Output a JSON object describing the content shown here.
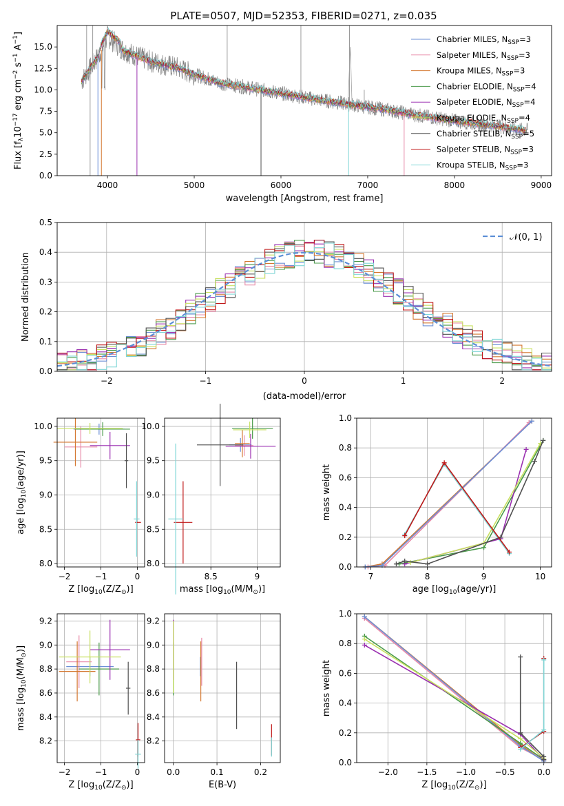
{
  "figure_title": "PLATE=0507, MJD=52353, FIBERID=0271, z=0.035",
  "series": [
    {
      "name": "Chabrier MILES",
      "nssp": "3",
      "color": "#6b8fd6"
    },
    {
      "name": "Salpeter MILES",
      "nssp": "3",
      "color": "#e88aa8"
    },
    {
      "name": "Kroupa MILES",
      "nssp": "3",
      "color": "#d4772f"
    },
    {
      "name": "Chabrier ELODIE",
      "nssp": "4",
      "color": "#4a9a4a"
    },
    {
      "name": "Salpeter ELODIE",
      "nssp": "4",
      "color": "#9a2fb0"
    },
    {
      "name": "Kroupa ELODIE",
      "nssp": "4",
      "color": "#c8e060"
    },
    {
      "name": "Chabrier STELIB",
      "nssp": "5",
      "color": "#505050"
    },
    {
      "name": "Salpeter STELIB",
      "nssp": "3",
      "color": "#c01818"
    },
    {
      "name": "Kroupa STELIB",
      "nssp": "3",
      "color": "#7fd6d6"
    }
  ],
  "chart_data": [
    {
      "id": "spectrum",
      "type": "line",
      "xlabel": "wavelength [Angstrom, rest frame]",
      "ylabel_main": "Flux [f",
      "ylabel_sub": "λ",
      "ylabel_rest": "10",
      "ylabel_exp1": "−17",
      "ylabel_mid": " erg cm",
      "ylabel_exp2": "−2",
      "ylabel_mid2": " s",
      "ylabel_exp3": "−1",
      "ylabel_end": " A",
      "ylabel_exp4": "−1",
      "ylabel_close": "]",
      "xlim": [
        3420,
        9120
      ],
      "ylim": [
        0,
        17.5
      ],
      "xticks": [
        4000,
        5000,
        6000,
        7000,
        8000,
        9000
      ],
      "yticks": [
        0.0,
        2.5,
        5.0,
        7.5,
        10.0,
        12.5,
        15.0
      ],
      "continuum": {
        "x": [
          3700,
          3900,
          4000,
          4200,
          4500,
          4800,
          5000,
          5300,
          5600,
          6000,
          6400,
          6800,
          7200,
          7600,
          8000,
          8400,
          8800
        ],
        "y": [
          11.0,
          14.0,
          16.2,
          14.5,
          13.3,
          12.6,
          11.8,
          10.8,
          10.3,
          9.6,
          8.9,
          8.3,
          7.7,
          7.0,
          6.4,
          5.9,
          5.3
        ]
      },
      "legend_label_suffix": "N",
      "legend_label_sub": "SSP"
    },
    {
      "id": "residuals",
      "type": "step",
      "xlabel": "(data-model)/error",
      "ylabel": "Normed distribution",
      "xlim": [
        -2.5,
        2.5
      ],
      "ylim": [
        0,
        0.5
      ],
      "xticks": [
        -2,
        -1,
        0,
        1,
        2
      ],
      "yticks": [
        0.0,
        0.1,
        0.2,
        0.3,
        0.4,
        0.5
      ],
      "xticklabels": [
        "−2",
        "−1",
        "0",
        "1",
        "2"
      ],
      "normal_label": "𝒩(0, 1)",
      "normal_color": "#5b8ed6",
      "bin_width": 0.1,
      "base_hist": [
        0.03,
        0.03,
        0.04,
        0.04,
        0.05,
        0.06,
        0.07,
        0.1,
        0.11,
        0.12,
        0.15,
        0.17,
        0.19,
        0.21,
        0.22,
        0.24,
        0.24,
        0.23,
        0.26,
        0.25,
        0.29,
        0.31,
        0.28,
        0.33,
        0.3,
        0.34,
        0.35,
        0.34,
        0.37,
        0.36,
        0.38,
        0.37,
        0.39,
        0.38,
        0.36,
        0.37,
        0.35,
        0.34,
        0.36,
        0.33,
        0.32,
        0.33,
        0.3,
        0.28,
        0.27,
        0.25,
        0.23,
        0.22,
        0.2,
        0.19,
        0.17,
        0.15,
        0.13,
        0.12,
        0.1,
        0.09,
        0.08,
        0.07,
        0.06,
        0.05,
        0.05,
        0.04,
        0.04,
        0.03,
        0.03,
        0.03,
        0.03,
        0.02,
        0.02,
        0.02,
        0.03,
        0.02,
        0.03,
        0.03,
        0.03,
        0.03,
        0.02,
        0.03,
        0.02,
        0.02,
        0.03,
        0.02,
        0.03,
        0.02,
        0.03,
        0.02,
        0.03,
        0.02,
        0.02,
        0.03,
        0.02,
        0.03,
        0.03,
        0.02,
        0.02,
        0.02,
        0.02,
        0.02,
        0.02,
        0.02
      ],
      "hist_start": -2.5
    },
    {
      "id": "z_age",
      "type": "errorbar",
      "xlabel": "Z [log",
      "xlabel_sub": "10",
      "xlabel_end": "(Z/Z",
      "xlabel_sun": "⊙",
      "xlabel_close": ")]",
      "ylabel": "age  [log",
      "ylabel_sub": "10",
      "ylabel_end": "(age/yr)]",
      "xlim": [
        -2.2,
        0.2
      ],
      "ylim": [
        7.95,
        10.12
      ],
      "xticks": [
        -2,
        -1,
        0
      ],
      "yticks": [
        8.0,
        8.5,
        9.0,
        9.5,
        10.0
      ],
      "xticklabels": [
        "−2",
        "−1",
        "0"
      ],
      "points": [
        {
          "x": -1.05,
          "y": 9.96,
          "xerr": 0.7,
          "yerr": 0.08,
          "s": 0
        },
        {
          "x": -1.55,
          "y": 9.7,
          "xerr": 0.45,
          "yerr": 0.3,
          "s": 1
        },
        {
          "x": -1.7,
          "y": 9.77,
          "xerr": 0.6,
          "yerr": 0.35,
          "s": 2
        },
        {
          "x": -0.95,
          "y": 9.96,
          "xerr": 0.75,
          "yerr": 0.1,
          "s": 3
        },
        {
          "x": -0.75,
          "y": 9.72,
          "xerr": 0.55,
          "yerr": 0.2,
          "s": 4
        },
        {
          "x": -1.3,
          "y": 9.97,
          "xerr": 0.9,
          "yerr": 0.08,
          "s": 5
        },
        {
          "x": -0.3,
          "y": 9.5,
          "xerr": 0.05,
          "yerr": 0.4,
          "s": 6
        },
        {
          "x": 0.02,
          "y": 8.6,
          "xerr": 0.08,
          "yerr": 0.0,
          "s": 7
        },
        {
          "x": -0.02,
          "y": 8.65,
          "xerr": 0.08,
          "yerr": 0.55,
          "s": 8
        }
      ]
    },
    {
      "id": "mass_age",
      "type": "errorbar",
      "xlabel": "mass [log",
      "xlabel_sub": "10",
      "xlabel_end": "(M/M",
      "xlabel_sun": "⊙",
      "xlabel_close": ")]",
      "xlim": [
        8.0,
        9.25
      ],
      "ylim": [
        7.95,
        10.12
      ],
      "xticks": [
        8.5,
        9.0
      ],
      "yticks": [
        8.0,
        8.5,
        9.0,
        9.5,
        10.0
      ],
      "points": [
        {
          "x": 8.82,
          "y": 9.73,
          "xerr": 0.12,
          "yerr": 0.1,
          "s": 0
        },
        {
          "x": 8.86,
          "y": 9.72,
          "xerr": 0.1,
          "yerr": 0.15,
          "s": 1
        },
        {
          "x": 8.84,
          "y": 9.75,
          "xerr": 0.08,
          "yerr": 0.2,
          "s": 2
        },
        {
          "x": 8.95,
          "y": 9.97,
          "xerr": 0.22,
          "yerr": 0.15,
          "s": 3
        },
        {
          "x": 8.93,
          "y": 9.71,
          "xerr": 0.27,
          "yerr": 0.18,
          "s": 4
        },
        {
          "x": 8.92,
          "y": 9.95,
          "xerr": 0.18,
          "yerr": 0.12,
          "s": 5
        },
        {
          "x": 8.6,
          "y": 9.73,
          "xerr": 0.25,
          "yerr": 0.6,
          "s": 6
        },
        {
          "x": 8.2,
          "y": 8.6,
          "xerr": 0.1,
          "yerr": 0.6,
          "s": 7
        },
        {
          "x": 8.12,
          "y": 8.65,
          "xerr": 0.08,
          "yerr": 1.1,
          "s": 8
        }
      ]
    },
    {
      "id": "age_weight",
      "type": "line",
      "xlabel": "age  [log",
      "xlabel_sub": "10",
      "xlabel_end": "(age/yr)]",
      "ylabel": "mass weight",
      "xlim": [
        6.75,
        10.2
      ],
      "ylim": [
        0,
        1
      ],
      "xticks": [
        7,
        8,
        9,
        10
      ],
      "yticks": [
        0.0,
        0.2,
        0.4,
        0.6,
        0.8,
        1.0
      ],
      "lines": [
        {
          "s": 2,
          "x": [
            6.9,
            7.2,
            9.85
          ],
          "y": [
            0.0,
            0.02,
            0.98
          ]
        },
        {
          "s": 1,
          "x": [
            6.95,
            7.25,
            9.8
          ],
          "y": [
            0.0,
            0.01,
            0.97
          ]
        },
        {
          "s": 0,
          "x": [
            6.9,
            7.2,
            9.85
          ],
          "y": [
            0.0,
            0.01,
            0.98
          ]
        },
        {
          "s": 8,
          "x": [
            7.6,
            8.3,
            9.45
          ],
          "y": [
            0.22,
            0.69,
            0.09
          ]
        },
        {
          "s": 3,
          "x": [
            7.5,
            9.0,
            10.05
          ],
          "y": [
            0.02,
            0.13,
            0.85
          ]
        },
        {
          "s": 4,
          "x": [
            7.6,
            9.3,
            9.75
          ],
          "y": [
            0.02,
            0.19,
            0.79
          ]
        },
        {
          "s": 5,
          "x": [
            7.7,
            9.0,
            10.0
          ],
          "y": [
            0.03,
            0.16,
            0.83
          ]
        },
        {
          "s": 6,
          "x": [
            7.45,
            7.6,
            8.0,
            9.3,
            9.9,
            10.05
          ],
          "y": [
            0.02,
            0.04,
            0.02,
            0.2,
            0.71,
            0.85
          ]
        },
        {
          "s": 7,
          "x": [
            7.6,
            8.3,
            9.45
          ],
          "y": [
            0.21,
            0.7,
            0.1
          ]
        }
      ]
    },
    {
      "id": "z_mass",
      "type": "errorbar",
      "xlabel": "Z [log",
      "xlabel_sub": "10",
      "xlabel_end": "(Z/Z",
      "xlabel_sun": "⊙",
      "xlabel_close": ")]",
      "ylabel": "mass [log",
      "ylabel_sub": "10",
      "ylabel_end": "(M/M",
      "ylabel_sun": "⊙",
      "ylabel_close": ")]",
      "xlim": [
        -2.2,
        0.2
      ],
      "ylim": [
        8.02,
        9.26
      ],
      "xticks": [
        -2,
        -1,
        0
      ],
      "yticks": [
        8.2,
        8.4,
        8.6,
        8.8,
        9.0,
        9.2
      ],
      "xticklabels": [
        "−2",
        "−1",
        "0"
      ],
      "points": [
        {
          "x": -1.3,
          "y": 8.82,
          "xerr": 0.65,
          "yerr": 0.08,
          "s": 0
        },
        {
          "x": -1.6,
          "y": 8.86,
          "xerr": 0.35,
          "yerr": 0.22,
          "s": 1
        },
        {
          "x": -1.65,
          "y": 8.78,
          "xerr": 0.5,
          "yerr": 0.25,
          "s": 2
        },
        {
          "x": -1.05,
          "y": 8.8,
          "xerr": 0.55,
          "yerr": 0.22,
          "s": 3
        },
        {
          "x": -0.75,
          "y": 8.96,
          "xerr": 0.55,
          "yerr": 0.25,
          "s": 4
        },
        {
          "x": -1.3,
          "y": 8.9,
          "xerr": 0.85,
          "yerr": 0.22,
          "s": 5
        },
        {
          "x": -0.25,
          "y": 8.64,
          "xerr": 0.06,
          "yerr": 0.22,
          "s": 6
        },
        {
          "x": 0.02,
          "y": 8.21,
          "xerr": 0.06,
          "yerr": 0.14,
          "s": 7
        },
        {
          "x": 0.02,
          "y": 8.09,
          "xerr": 0.08,
          "yerr": 0.12,
          "s": 8
        }
      ]
    },
    {
      "id": "ebv_mass",
      "type": "errorbar",
      "xlabel": "E(B-V)",
      "xlim": [
        -0.02,
        0.245
      ],
      "ylim": [
        8.02,
        9.26
      ],
      "xticks": [
        0.0,
        0.1,
        0.2
      ],
      "yticks": [
        8.2,
        8.4,
        8.6,
        8.8,
        9.0,
        9.2
      ],
      "points": [
        {
          "x": 0.062,
          "y": 8.82,
          "xerr": 0.0,
          "yerr": 0.08,
          "s": 0
        },
        {
          "x": 0.065,
          "y": 8.86,
          "xerr": 0.0,
          "yerr": 0.2,
          "s": 1
        },
        {
          "x": 0.063,
          "y": 8.78,
          "xerr": 0.0,
          "yerr": 0.25,
          "s": 2
        },
        {
          "x": 0.0,
          "y": 8.8,
          "xerr": 0.0,
          "yerr": 0.22,
          "s": 3
        },
        {
          "x": 0.0,
          "y": 8.96,
          "xerr": 0.0,
          "yerr": 0.25,
          "s": 4
        },
        {
          "x": 0.0,
          "y": 8.9,
          "xerr": 0.0,
          "yerr": 0.3,
          "s": 5
        },
        {
          "x": 0.145,
          "y": 8.58,
          "xerr": 0.0,
          "yerr": 0.28,
          "s": 6
        },
        {
          "x": 0.225,
          "y": 8.21,
          "xerr": 0.0,
          "yerr": 0.13,
          "s": 7
        },
        {
          "x": 0.225,
          "y": 8.15,
          "xerr": 0.0,
          "yerr": 0.08,
          "s": 8
        }
      ]
    },
    {
      "id": "z_weight",
      "type": "line",
      "xlabel": "Z [log",
      "xlabel_sub": "10",
      "xlabel_end": "(Z/Z",
      "xlabel_sun": "⊙",
      "xlabel_close": ")]",
      "ylabel": "mass weight",
      "xlim": [
        -2.4,
        0.1
      ],
      "ylim": [
        0,
        1
      ],
      "xticks": [
        -2.0,
        -1.5,
        -1.0,
        -0.5,
        0.0
      ],
      "yticks": [
        0.0,
        0.2,
        0.4,
        0.6,
        0.8,
        1.0
      ],
      "xticklabels": [
        "−2.0",
        "−1.5",
        "−1.0",
        "−0.5",
        "0.0"
      ],
      "lines": [
        {
          "s": 2,
          "x": [
            -2.3,
            -0.3,
            0.0
          ],
          "y": [
            0.98,
            0.12,
            0.01
          ]
        },
        {
          "s": 1,
          "x": [
            -2.3,
            -0.3,
            0.0
          ],
          "y": [
            0.97,
            0.1,
            0.02
          ]
        },
        {
          "s": 0,
          "x": [
            -2.3,
            -0.3,
            0.0
          ],
          "y": [
            0.98,
            0.11,
            0.01
          ]
        },
        {
          "s": 3,
          "x": [
            -2.3,
            -0.3,
            0.0
          ],
          "y": [
            0.85,
            0.13,
            0.02
          ]
        },
        {
          "s": 4,
          "x": [
            -2.3,
            -0.3,
            0.0
          ],
          "y": [
            0.79,
            0.19,
            0.02
          ]
        },
        {
          "s": 5,
          "x": [
            -2.3,
            -0.3,
            0.0
          ],
          "y": [
            0.83,
            0.16,
            0.03
          ]
        },
        {
          "s": 6,
          "x": [
            -0.3,
            -0.3,
            0.0,
            0.0
          ],
          "y": [
            0.71,
            0.2,
            0.04,
            0.02
          ]
        },
        {
          "s": 7,
          "x": [
            -0.3,
            0.0,
            0.0
          ],
          "y": [
            0.1,
            0.21,
            0.7
          ]
        },
        {
          "s": 8,
          "x": [
            -0.3,
            0.0,
            0.0
          ],
          "y": [
            0.09,
            0.22,
            0.69
          ]
        }
      ]
    }
  ]
}
